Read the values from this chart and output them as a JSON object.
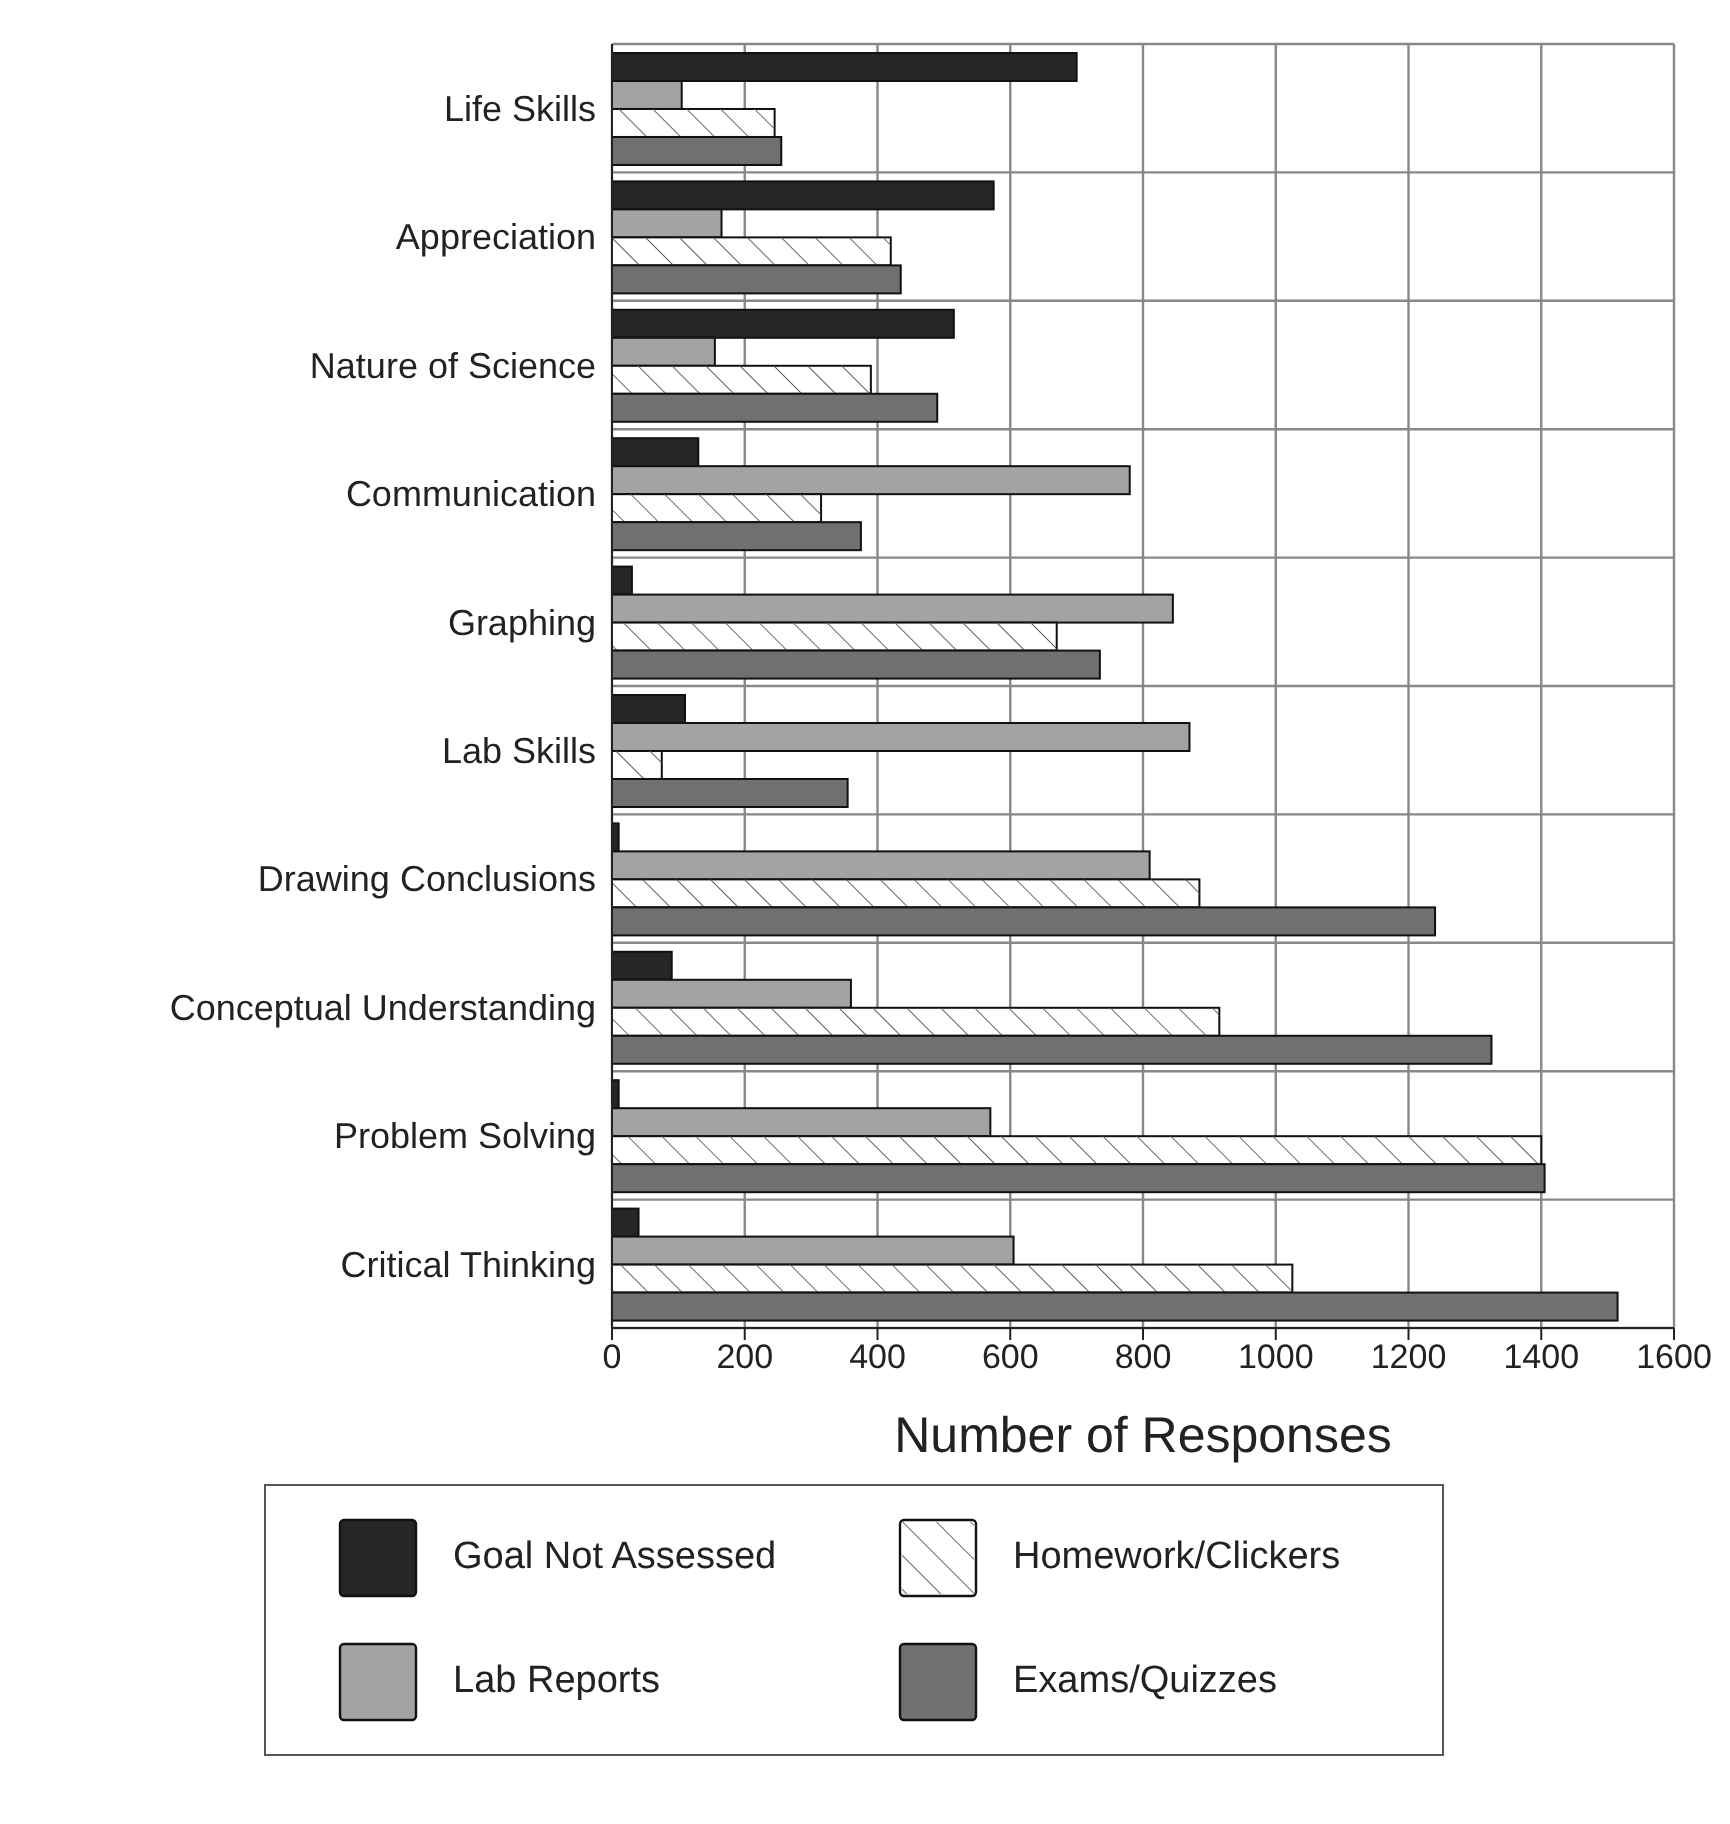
{
  "chart_data": {
    "type": "bar",
    "orientation": "horizontal",
    "xlabel": "Number of Responses",
    "categories": [
      "Life Skills",
      "Appreciation",
      "Nature of Science",
      "Communication",
      "Graphing",
      "Lab Skills",
      "Drawing Conclusions",
      "Conceptual Understanding",
      "Problem Solving",
      "Critical Thinking"
    ],
    "series": [
      {
        "name": "Goal Not Assessed",
        "color": "#262626",
        "values": [
          700,
          575,
          515,
          130,
          30,
          110,
          10,
          90,
          10,
          40
        ]
      },
      {
        "name": "Lab Reports",
        "color": "#a3a3a3",
        "values": [
          105,
          165,
          155,
          780,
          845,
          870,
          810,
          360,
          570,
          605
        ]
      },
      {
        "name": "Homework/Clickers",
        "color": "#ffffff",
        "values": [
          245,
          420,
          390,
          315,
          670,
          75,
          885,
          915,
          1400,
          1025
        ]
      },
      {
        "name": "Exams/Quizzes",
        "color": "#707070",
        "values": [
          255,
          435,
          490,
          375,
          735,
          355,
          1240,
          1325,
          1405,
          1515
        ]
      }
    ],
    "xlim": [
      0,
      1600
    ],
    "xticks": [
      0,
      200,
      400,
      600,
      800,
      1000,
      1200,
      1400,
      1600
    ],
    "grid": true,
    "legend": "bottom"
  }
}
